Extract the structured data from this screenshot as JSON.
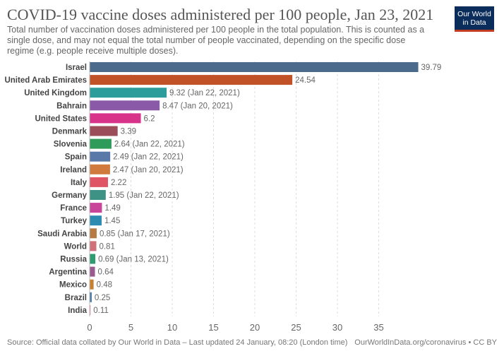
{
  "header": {
    "title": "COVID-19 vaccine doses administered per 100 people, Jan 23, 2021",
    "subtitle": "Total number of vaccination doses administered per 100 people in the total population. This is counted as a single dose, and may not equal the total number of people vaccinated, depending on the specific dose regime (e.g. people receive multiple doses).",
    "logo_line1": "Our World",
    "logo_line2": "in Data",
    "logo_colors": {
      "bg": "#0b2d5b",
      "accent": "#c23b22"
    }
  },
  "footer": {
    "source": "Source: Official data collated by Our World in Data – Last updated 24 January, 08:20 (London time)",
    "license": "OurWorldInData.org/coronavirus • CC BY"
  },
  "chart_data": {
    "type": "bar",
    "orientation": "horizontal",
    "title": "COVID-19 vaccine doses administered per 100 people, Jan 23, 2021",
    "xlabel": "",
    "ylabel": "",
    "xlim": [
      0,
      40
    ],
    "xticks": [
      0,
      5,
      10,
      15,
      20,
      25,
      30,
      35
    ],
    "grid": true,
    "categories": [
      "Israel",
      "United Arab Emirates",
      "United Kingdom",
      "Bahrain",
      "United States",
      "Denmark",
      "Slovenia",
      "Spain",
      "Ireland",
      "Italy",
      "Germany",
      "France",
      "Turkey",
      "Saudi Arabia",
      "World",
      "Russia",
      "Argentina",
      "Mexico",
      "Brazil",
      "India"
    ],
    "values": [
      39.79,
      24.54,
      9.32,
      8.47,
      6.2,
      3.39,
      2.64,
      2.49,
      2.47,
      2.22,
      1.95,
      1.49,
      1.45,
      0.85,
      0.81,
      0.69,
      0.64,
      0.48,
      0.25,
      0.11
    ],
    "labels": [
      "39.79",
      "24.54",
      "9.32 (Jan 22, 2021)",
      "8.47 (Jan 20, 2021)",
      "6.2",
      "3.39",
      "2.64 (Jan 22, 2021)",
      "2.49 (Jan 22, 2021)",
      "2.47 (Jan 20, 2021)",
      "2.22",
      "1.95 (Jan 22, 2021)",
      "1.49",
      "1.45",
      "0.85 (Jan 17, 2021)",
      "0.81",
      "0.69 (Jan 13, 2021)",
      "0.64",
      "0.48",
      "0.25",
      "0.11"
    ],
    "colors": [
      "#4c6a8c",
      "#c15127",
      "#2c9d9a",
      "#8a5aa8",
      "#d8328a",
      "#9b4d5a",
      "#2e9b5a",
      "#5a79a8",
      "#d07a3e",
      "#e05566",
      "#3e9185",
      "#c8459a",
      "#2d8ab0",
      "#b87a44",
      "#d0707a",
      "#2e9b70",
      "#9a5a8e",
      "#c8822e",
      "#4a7aaa",
      "#e08898"
    ]
  }
}
